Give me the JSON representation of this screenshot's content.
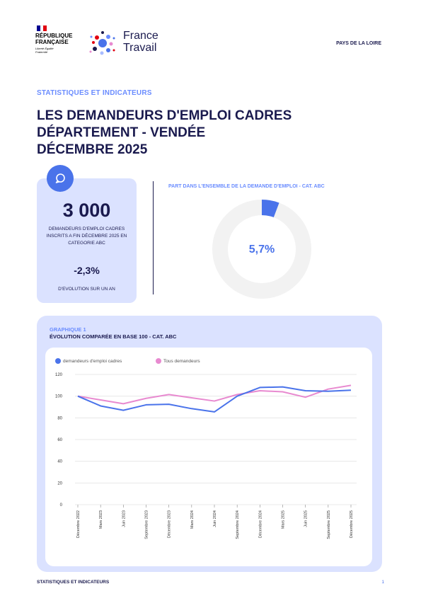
{
  "header": {
    "republique_lines": [
      "RÉPUBLIQUE",
      "FRANÇAISE"
    ],
    "motto": "Liberté Égalité Fraternité",
    "brand_lines": [
      "France",
      "Travail"
    ],
    "region": "PAYS DE LA LOIRE"
  },
  "eyebrow": "STATISTIQUES ET INDICATEURS",
  "title_lines": [
    "LES DEMANDEURS D'EMPLOI CADRES",
    "DÉPARTEMENT - VENDÉE",
    "DÉCEMBRE 2025"
  ],
  "kpi": {
    "icon": "chat-bubble-icon",
    "value": "3 000",
    "description": "DEMANDEURS D'EMPLOI CADRES INSCRITS A FIN DÉCEMBRE 2025 EN CATEGORIE ABC",
    "evolution": "-2,3%",
    "evolution_label": "D'EVOLUTION SUR UN AN"
  },
  "donut": {
    "title": "PART DANS L'ENSEMBLE DE LA DEMANDE D'EMPLOI - CAT. ABC",
    "value_label": "5,7%",
    "value": 5.7,
    "color": "#4a73ea",
    "track_color": "#f2f2f2"
  },
  "chart": {
    "eyebrow": "GRAPHIQUE 1",
    "title": "ÉVOLUTION COMPARÉE EN BASE 100 - CAT. ABC"
  },
  "chart_data": {
    "type": "line",
    "categories": [
      "Décembre 2022",
      "Mars 2023",
      "Juin 2023",
      "Septembre 2023",
      "Décembre 2023",
      "Mars 2024",
      "Juin 2024",
      "Septembre 2024",
      "Décembre 2024",
      "Mars 2025",
      "Juin 2025",
      "Septembre 2025",
      "Décembre 2025"
    ],
    "series": [
      {
        "name": "demandeurs d'emploi cadres",
        "color": "#4a73ea",
        "values": [
          100,
          91,
          87,
          92,
          92.5,
          88.5,
          85.5,
          100,
          108,
          108.5,
          105,
          104.5,
          105.5
        ]
      },
      {
        "name": "Tous demandeurs",
        "color": "#e88ad0",
        "values": [
          100,
          96.5,
          93,
          98,
          101.5,
          98.5,
          95.5,
          101.5,
          105,
          104,
          99,
          106.5,
          110
        ]
      }
    ],
    "ylim": [
      0,
      120
    ],
    "yticks": [
      0,
      20,
      40,
      60,
      80,
      100,
      120
    ],
    "grid": true,
    "legend": "top-left"
  },
  "footer": {
    "left": "STATISTIQUES ET INDICATEURS",
    "page": "1"
  }
}
